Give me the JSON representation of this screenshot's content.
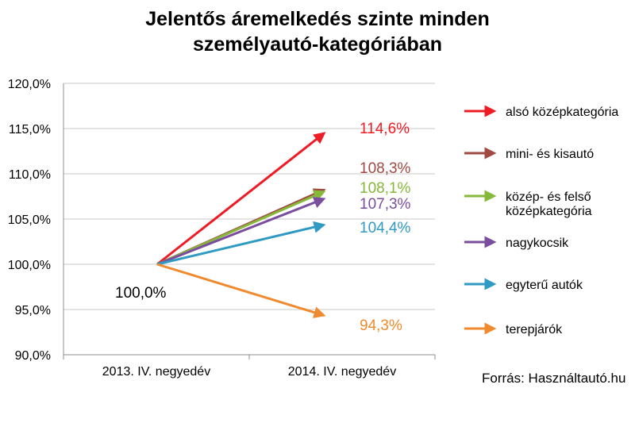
{
  "chart_data": {
    "type": "line",
    "title_lines": [
      "Jelentős áremelkedés szinte minden",
      "személyautó-kategóriában"
    ],
    "categories": [
      "2013. IV. negyedév",
      "2014. IV. negyedév"
    ],
    "ylim": [
      90,
      120
    ],
    "yticks": [
      90,
      95,
      100,
      105,
      110,
      115,
      120
    ],
    "ytick_labels": [
      "90,0%",
      "95,0%",
      "100,0%",
      "105,0%",
      "110,0%",
      "115,0%",
      "120,0%"
    ],
    "start_label": "100,0%",
    "grid": true,
    "series": [
      {
        "name": "alsó középkategória",
        "legend_lines": [
          "alsó középkategória"
        ],
        "values": [
          100.0,
          114.6
        ],
        "label": "114,6%",
        "color": "#ee1c24"
      },
      {
        "name": "mini- és kisautó",
        "legend_lines": [
          "mini- és kisautó"
        ],
        "values": [
          100.0,
          108.3
        ],
        "label": "108,3%",
        "color": "#a04a42"
      },
      {
        "name": "közép- és felső középkategória",
        "legend_lines": [
          "közép- és felső",
          "középkategória"
        ],
        "values": [
          100.0,
          108.1
        ],
        "label": "108,1%",
        "color": "#86b83a"
      },
      {
        "name": "nagykocsik",
        "legend_lines": [
          "nagykocsik"
        ],
        "values": [
          100.0,
          107.3
        ],
        "label": "107,3%",
        "color": "#7a4d9e"
      },
      {
        "name": "egyterű autók",
        "legend_lines": [
          "egyterű autók"
        ],
        "values": [
          100.0,
          104.4
        ],
        "label": "104,4%",
        "color": "#2f9ac2"
      },
      {
        "name": "terepjárók",
        "legend_lines": [
          "terepjárók"
        ],
        "values": [
          100.0,
          94.3
        ],
        "label": "94,3%",
        "color": "#f08a2e"
      }
    ],
    "legend_position": "right"
  },
  "source": "Forrás: Használtautó.hu"
}
